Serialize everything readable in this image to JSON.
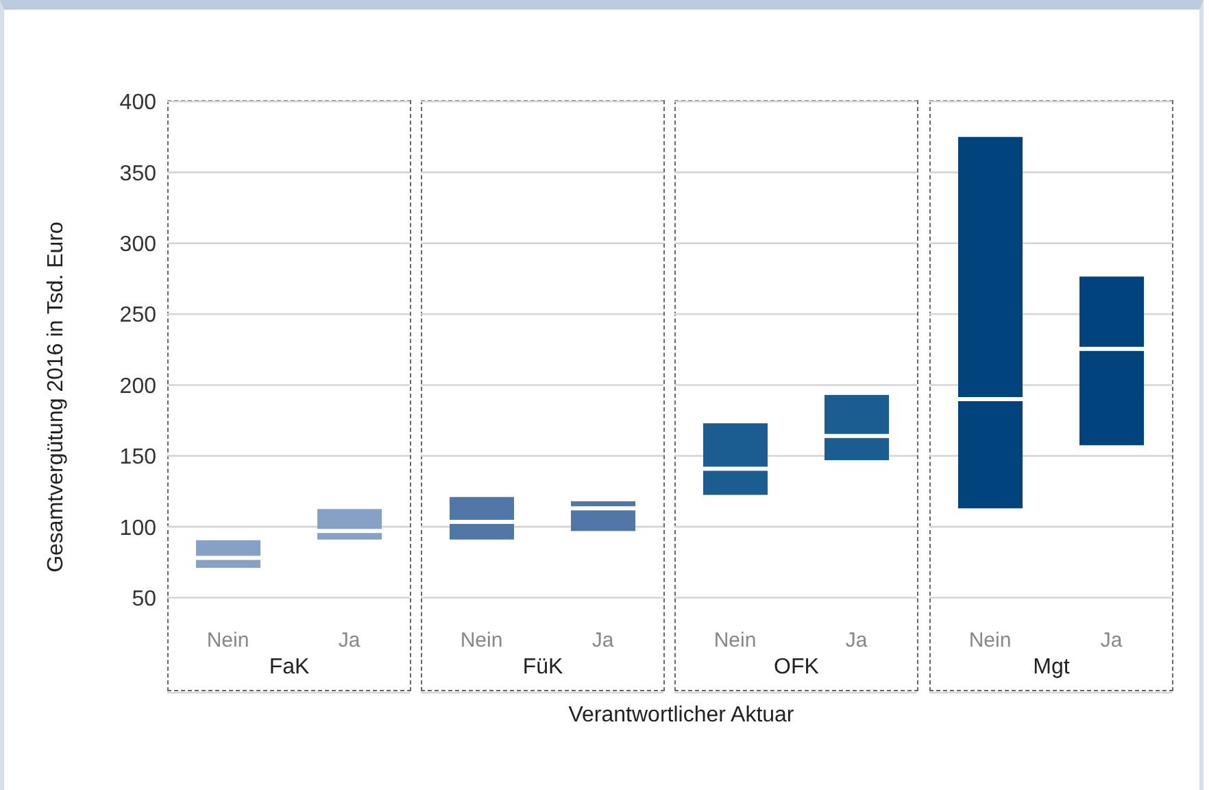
{
  "chart_data": [
    {
      "type": "box",
      "title": "FaK",
      "ylabel": "Gesamtvergütung 2016 in Tsd. Euro",
      "categories": [
        "Nein",
        "Ja"
      ],
      "color": "#87a0c5",
      "boxes": [
        {
          "low": 71,
          "q1": 71,
          "median": 78,
          "q3": 90.5,
          "high": 90.5
        },
        {
          "low": 91,
          "q1": 91,
          "median": 97,
          "q3": 112.5,
          "high": 112.5
        }
      ],
      "ylim": [
        -17,
        400
      ],
      "yticks": [
        50,
        100,
        150,
        200,
        250,
        300,
        350,
        400
      ],
      "grid": "y"
    },
    {
      "type": "box",
      "title": "FüK",
      "xlabel": "Verantwortlicher Aktuar",
      "categories": [
        "Nein",
        "Ja"
      ],
      "color": "#5077a8",
      "boxes": [
        {
          "low": 91,
          "q1": 91,
          "median": 103.5,
          "q3": 121,
          "high": 121
        },
        {
          "low": 97,
          "q1": 97,
          "median": 113,
          "q3": 118,
          "high": 118
        }
      ],
      "ylim": [
        -17,
        400
      ],
      "yticks": [
        50,
        100,
        150,
        200,
        250,
        300,
        350,
        400
      ],
      "grid": "y",
      "tick_labels": "x"
    },
    {
      "type": "box",
      "title": "OFK",
      "categories": [
        "Nein",
        "Ja"
      ],
      "color": "#1b5c91",
      "boxes": [
        {
          "low": 122.5,
          "q1": 122.5,
          "median": 141,
          "q3": 173,
          "high": 173
        },
        {
          "low": 147,
          "q1": 147,
          "median": 164,
          "q3": 193,
          "high": 193
        }
      ],
      "ylim": [
        -17,
        400
      ],
      "yticks": [
        50,
        100,
        150,
        200,
        250,
        300,
        350,
        400
      ],
      "grid": "y",
      "tick_labels": "x"
    },
    {
      "type": "box",
      "title": "Mgt",
      "categories": [
        "Nein",
        "Ja"
      ],
      "color": "#01447d",
      "boxes": [
        {
          "low": 113,
          "q1": 113,
          "median": 190,
          "q3": 375,
          "high": 375
        },
        {
          "low": 157.5,
          "q1": 157.5,
          "median": 225.5,
          "q3": 276.5,
          "high": 276.5
        }
      ],
      "ylim": [
        -17,
        400
      ],
      "yticks": [
        50,
        100,
        150,
        200,
        250,
        300,
        350,
        400
      ],
      "grid": "y",
      "tick_labels": "x"
    }
  ]
}
